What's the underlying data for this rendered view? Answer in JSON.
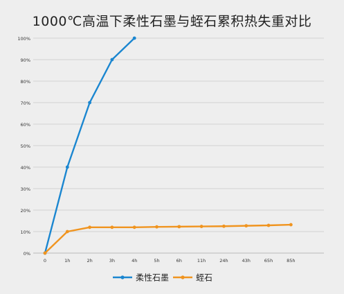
{
  "chart_data": {
    "type": "line",
    "title": "1000℃高温下柔性石墨与蛭石累积热失重对比",
    "xlabel": "",
    "ylabel": "",
    "categories": [
      "0",
      "1h",
      "2h",
      "3h",
      "4h",
      "5h",
      "6h",
      "11h",
      "24h",
      "43h",
      "65h",
      "85h"
    ],
    "y_ticks": [
      "0%",
      "10%",
      "20%",
      "30%",
      "40%",
      "50%",
      "60%",
      "70%",
      "80%",
      "90%",
      "100%"
    ],
    "ylim": [
      0,
      100
    ],
    "grid": true,
    "legend_position": "bottom-center",
    "series": [
      {
        "name": "柔性石墨",
        "color": "#1a86d0",
        "values": [
          0,
          40,
          70,
          90,
          100,
          null,
          null,
          null,
          null,
          null,
          null,
          null
        ]
      },
      {
        "name": "蛭石",
        "color": "#f0941f",
        "values": [
          0,
          10,
          12,
          12,
          12,
          12.2,
          12.3,
          12.4,
          12.5,
          12.7,
          12.9,
          13.2
        ]
      }
    ]
  }
}
